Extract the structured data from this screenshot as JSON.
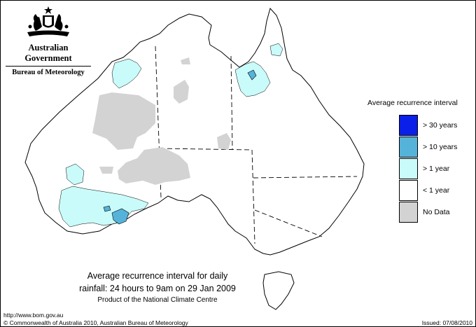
{
  "branding": {
    "government": "Australian Government",
    "agency": "Bureau of Meteorology",
    "emblem_icon": "commonwealth-coat-of-arms-icon"
  },
  "legend": {
    "title": "Average recurrence interval",
    "items": [
      {
        "label": "> 30 years",
        "color": "#0a1fe8"
      },
      {
        "label": "> 10 years",
        "color": "#55b3da"
      },
      {
        "label": "> 1 year",
        "color": "#c9fbfa"
      },
      {
        "label": "< 1 year",
        "color": "#ffffff"
      },
      {
        "label": "No Data",
        "color": "#d3d3d3"
      }
    ]
  },
  "caption": {
    "line1": "Average recurrence interval for daily",
    "line2": "rainfall: 24 hours to 9am on 29 Jan 2009",
    "line3": "Product of the National Climate Centre"
  },
  "footer": {
    "url": "http://www.bom.gov.au",
    "copyright": "© Commonwealth of Australia 2010, Australian Bureau of Meteorology",
    "issued": "Issued: 07/08/2010"
  }
}
